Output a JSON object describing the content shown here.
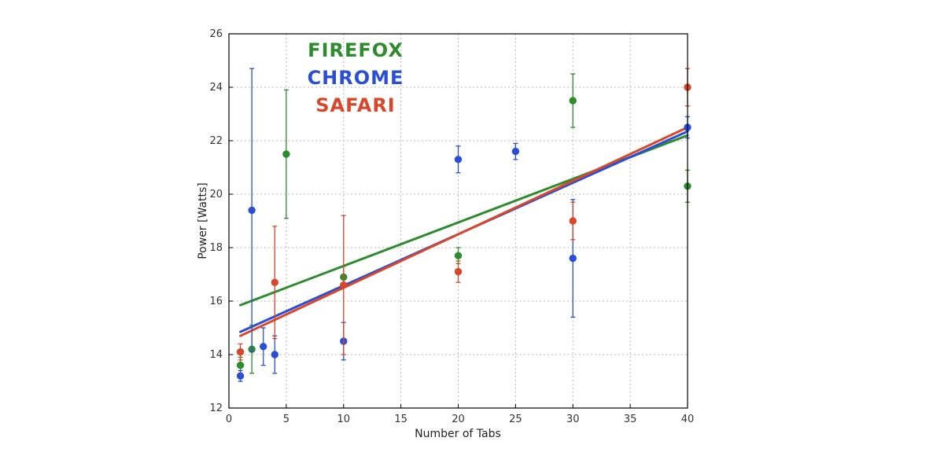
{
  "chart_data": {
    "type": "scatter",
    "title": "",
    "xlabel": "Number of Tabs",
    "ylabel": "Power [Watts]",
    "xlim": [
      0,
      40
    ],
    "ylim": [
      12,
      26
    ],
    "x_ticks": [
      0,
      5,
      10,
      15,
      20,
      25,
      30,
      35,
      40
    ],
    "y_ticks": [
      12,
      14,
      16,
      18,
      20,
      22,
      24,
      26
    ],
    "grid": true,
    "legend_position": "top-left",
    "series": [
      {
        "name": "FIREFOX",
        "color": "#2e8b2e",
        "points": [
          {
            "x": 1,
            "y": 13.6,
            "err": 0.3
          },
          {
            "x": 2,
            "y": 14.2,
            "err": 0.9
          },
          {
            "x": 5,
            "y": 21.5,
            "err": 2.4
          },
          {
            "x": 10,
            "y": 16.9,
            "err": 0.4
          },
          {
            "x": 20,
            "y": 17.7,
            "err": 0.3
          },
          {
            "x": 30,
            "y": 23.5,
            "err": 1.0
          },
          {
            "x": 40,
            "y": 20.3,
            "err": 0.6
          }
        ],
        "fit": {
          "x": [
            1,
            40
          ],
          "y": [
            15.85,
            22.2
          ]
        }
      },
      {
        "name": "CHROME",
        "color": "#2a4fd6",
        "points": [
          {
            "x": 1,
            "y": 13.2,
            "err": 0.2
          },
          {
            "x": 2,
            "y": 19.4,
            "err": 5.3
          },
          {
            "x": 3,
            "y": 14.3,
            "err": 0.7
          },
          {
            "x": 4,
            "y": 14.0,
            "err": 0.7
          },
          {
            "x": 10,
            "y": 14.5,
            "err": 0.7
          },
          {
            "x": 20,
            "y": 21.3,
            "err": 0.5
          },
          {
            "x": 25,
            "y": 21.6,
            "err": 0.3
          },
          {
            "x": 30,
            "y": 17.6,
            "err": 2.2
          },
          {
            "x": 40,
            "y": 22.5,
            "err": 0.4
          }
        ],
        "fit": {
          "x": [
            1,
            40
          ],
          "y": [
            14.85,
            22.35
          ]
        }
      },
      {
        "name": "SAFARI",
        "color": "#d9472b",
        "points": [
          {
            "x": 1,
            "y": 14.1,
            "err": 0.3
          },
          {
            "x": 4,
            "y": 16.7,
            "err": 2.1
          },
          {
            "x": 10,
            "y": 16.6,
            "err": 2.6
          },
          {
            "x": 20,
            "y": 17.1,
            "err": 0.4
          },
          {
            "x": 30,
            "y": 19.0,
            "err": 0.7
          },
          {
            "x": 40,
            "y": 24.0,
            "err": 0.7
          }
        ],
        "fit": {
          "x": [
            1,
            40
          ],
          "y": [
            14.7,
            22.5
          ]
        }
      }
    ]
  }
}
